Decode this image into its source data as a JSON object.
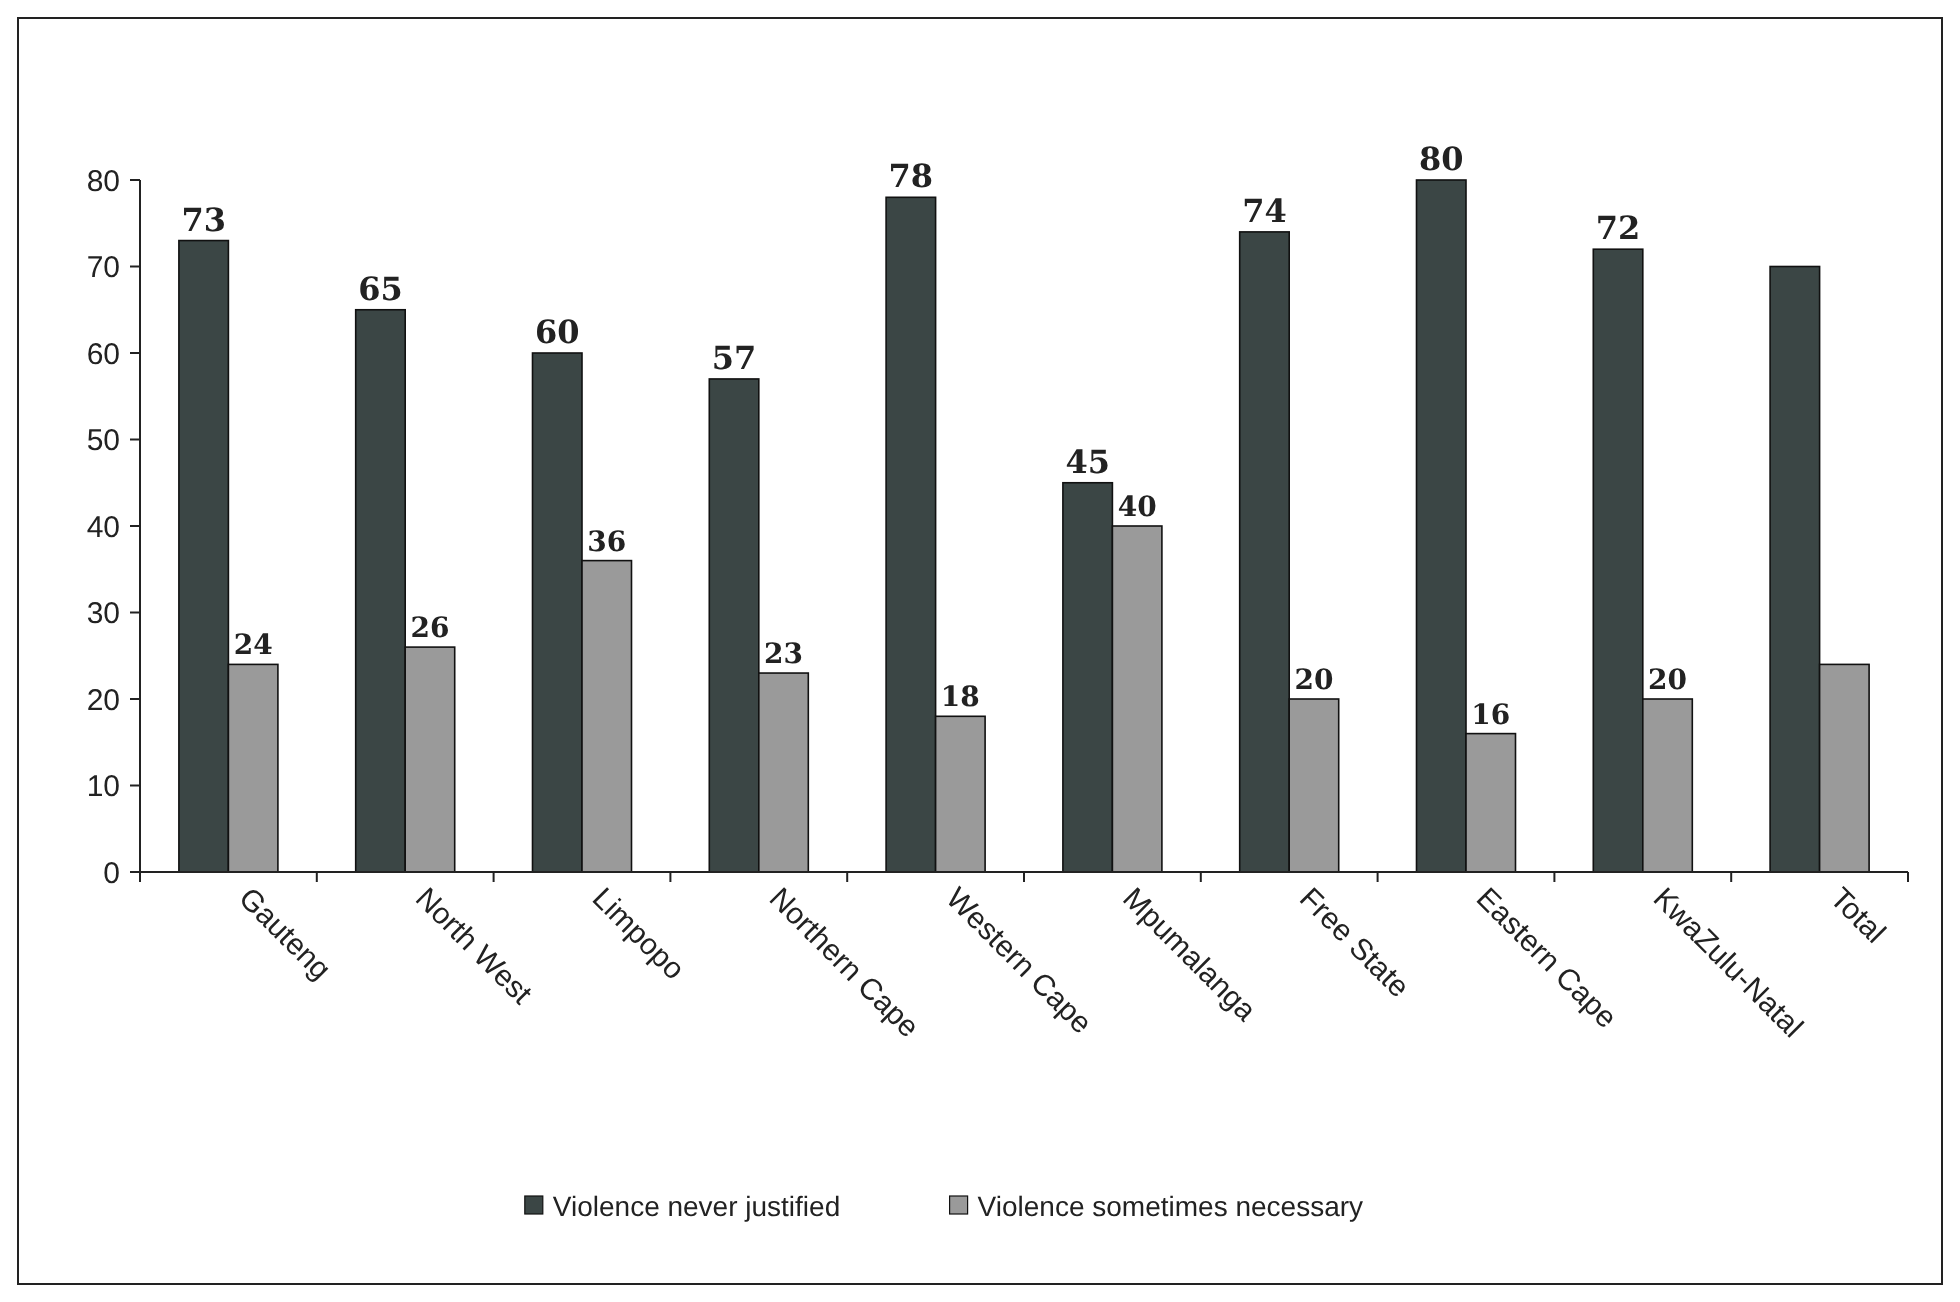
{
  "chart_data": {
    "type": "bar",
    "categories": [
      "Gauteng",
      "North West",
      "Limpopo",
      "Northern Cape",
      "Western Cape",
      "Mpumalanga",
      "Free State",
      "Eastern Cape",
      "KwaZulu-Natal",
      "Total"
    ],
    "series": [
      {
        "name": "Violence never justified",
        "color": "#3b4645",
        "values": [
          73,
          65,
          60,
          57,
          78,
          45,
          74,
          80,
          72,
          70
        ],
        "value_labels": [
          "73",
          "65",
          "60",
          "57",
          "78",
          "45",
          "74",
          "80",
          "72",
          null
        ]
      },
      {
        "name": "Violence sometimes necessary",
        "color": "#9a9a9a",
        "values": [
          24,
          26,
          36,
          23,
          18,
          40,
          20,
          16,
          20,
          24
        ],
        "value_labels": [
          "24",
          "26",
          "36",
          "23",
          "18",
          "40",
          "20",
          "16",
          "20",
          null
        ]
      }
    ],
    "ylim": [
      0,
      80
    ],
    "yticks": [
      0,
      10,
      20,
      30,
      40,
      50,
      60,
      70,
      80
    ],
    "grid": false,
    "legend": "bottom"
  }
}
